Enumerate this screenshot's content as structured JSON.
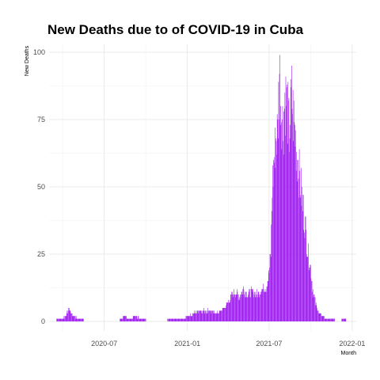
{
  "chart_data": {
    "type": "bar",
    "title": "New Deaths due to of COVID-19 in Cuba",
    "xlabel": "Month",
    "ylabel": "New Deaths",
    "bar_color": "#A020F0",
    "x_start": "2020-03-18",
    "x_end": "2021-12-22",
    "xlim": [
      "2020-03-01",
      "2022-01-10"
    ],
    "ylim": [
      0,
      103
    ],
    "x_ticks": [
      "2020-07",
      "2021-01",
      "2021-07",
      "2022-01"
    ],
    "y_ticks": [
      0,
      25,
      50,
      75,
      100
    ],
    "grid": true,
    "key_points": [
      [
        "2020-03-18",
        1
      ],
      [
        "2020-04-01",
        1
      ],
      [
        "2020-04-10",
        3
      ],
      [
        "2020-04-15",
        5
      ],
      [
        "2020-04-18",
        3
      ],
      [
        "2020-04-25",
        2
      ],
      [
        "2020-05-05",
        1
      ],
      [
        "2020-05-12",
        1
      ],
      [
        "2020-05-20",
        0
      ],
      [
        "2020-08-01",
        0
      ],
      [
        "2020-08-15",
        2
      ],
      [
        "2020-08-25",
        1
      ],
      [
        "2020-09-10",
        2
      ],
      [
        "2020-09-20",
        1
      ],
      [
        "2020-10-15",
        0
      ],
      [
        "2020-11-01",
        0
      ],
      [
        "2020-12-01",
        1
      ],
      [
        "2020-12-20",
        1
      ],
      [
        "2021-01-05",
        2
      ],
      [
        "2021-01-15",
        3
      ],
      [
        "2021-01-25",
        4
      ],
      [
        "2021-02-05",
        4
      ],
      [
        "2021-02-20",
        4
      ],
      [
        "2021-03-05",
        3
      ],
      [
        "2021-03-15",
        4
      ],
      [
        "2021-03-25",
        5
      ],
      [
        "2021-04-01",
        7
      ],
      [
        "2021-04-10",
        10
      ],
      [
        "2021-04-20",
        11
      ],
      [
        "2021-04-25",
        9
      ],
      [
        "2021-05-05",
        12
      ],
      [
        "2021-05-15",
        10
      ],
      [
        "2021-05-25",
        11
      ],
      [
        "2021-06-05",
        10
      ],
      [
        "2021-06-15",
        12
      ],
      [
        "2021-06-25",
        13
      ],
      [
        "2021-07-01",
        18
      ],
      [
        "2021-07-05",
        25
      ],
      [
        "2021-07-08",
        50
      ],
      [
        "2021-07-12",
        60
      ],
      [
        "2021-07-16",
        68
      ],
      [
        "2021-07-20",
        70
      ],
      [
        "2021-07-24",
        94
      ],
      [
        "2021-07-28",
        80
      ],
      [
        "2021-08-01",
        72
      ],
      [
        "2021-08-05",
        84
      ],
      [
        "2021-08-10",
        80
      ],
      [
        "2021-08-15",
        70
      ],
      [
        "2021-08-20",
        84
      ],
      [
        "2021-08-25",
        74
      ],
      [
        "2021-08-30",
        66
      ],
      [
        "2021-09-04",
        58
      ],
      [
        "2021-09-08",
        52
      ],
      [
        "2021-09-12",
        46
      ],
      [
        "2021-09-16",
        40
      ],
      [
        "2021-09-20",
        34
      ],
      [
        "2021-09-25",
        26
      ],
      [
        "2021-10-01",
        20
      ],
      [
        "2021-10-05",
        13
      ],
      [
        "2021-10-10",
        8
      ],
      [
        "2021-10-15",
        5
      ],
      [
        "2021-10-20",
        3
      ],
      [
        "2021-10-28",
        2
      ],
      [
        "2021-11-05",
        1
      ],
      [
        "2021-11-15",
        1
      ],
      [
        "2021-12-01",
        0
      ],
      [
        "2021-12-15",
        1
      ],
      [
        "2021-12-22",
        0
      ]
    ]
  }
}
